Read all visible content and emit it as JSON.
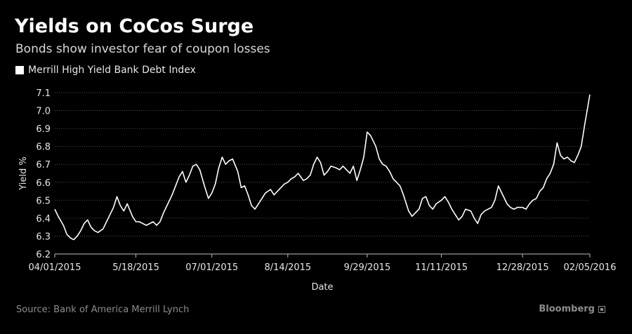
{
  "chart_data": {
    "type": "line",
    "title": "Yields on CoCos Surge",
    "subtitle": "Bonds show investor fear of coupon losses",
    "xlabel": "Date",
    "ylabel": "Yield %",
    "ylim": [
      6.2,
      7.1
    ],
    "yticks": [
      6.2,
      6.3,
      6.4,
      6.5,
      6.6,
      6.7,
      6.8,
      6.9,
      7.0,
      7.1
    ],
    "ytick_labels": [
      "6.2",
      "6.3",
      "6.4",
      "6.5",
      "6.6",
      "6.7",
      "6.8",
      "6.9",
      "7.0",
      "7.1"
    ],
    "xlim": [
      "2015-04-01",
      "2016-02-05"
    ],
    "xticks": [
      "2015-04-01",
      "2015-05-18",
      "2015-07-01",
      "2015-08-14",
      "2015-09-29",
      "2015-11-11",
      "2015-12-28",
      "2016-02-05"
    ],
    "xtick_labels": [
      "04/01/2015",
      "5/18/2015",
      "07/01/2015",
      "8/14/2015",
      "9/29/2015",
      "11/11/2015",
      "12/28/2015",
      "02/05/2016"
    ],
    "grid": true,
    "legend_position": "top-left",
    "series": [
      {
        "name": "Merrill High Yield Bank Debt Index",
        "color": "#ffffff",
        "x": [
          "2015-04-01",
          "2015-04-03",
          "2015-04-06",
          "2015-04-08",
          "2015-04-10",
          "2015-04-12",
          "2015-04-14",
          "2015-04-16",
          "2015-04-18",
          "2015-04-20",
          "2015-04-22",
          "2015-04-24",
          "2015-04-26",
          "2015-04-29",
          "2015-05-01",
          "2015-05-03",
          "2015-05-05",
          "2015-05-07",
          "2015-05-09",
          "2015-05-11",
          "2015-05-13",
          "2015-05-16",
          "2015-05-18",
          "2015-05-20",
          "2015-05-22",
          "2015-05-24",
          "2015-05-26",
          "2015-05-28",
          "2015-05-30",
          "2015-06-01",
          "2015-06-03",
          "2015-06-05",
          "2015-06-08",
          "2015-06-10",
          "2015-06-12",
          "2015-06-14",
          "2015-06-16",
          "2015-06-18",
          "2015-06-20",
          "2015-06-22",
          "2015-06-24",
          "2015-06-27",
          "2015-06-29",
          "2015-07-01",
          "2015-07-03",
          "2015-07-05",
          "2015-07-07",
          "2015-07-09",
          "2015-07-11",
          "2015-07-13",
          "2015-07-16",
          "2015-07-18",
          "2015-07-20",
          "2015-07-22",
          "2015-07-24",
          "2015-07-26",
          "2015-07-28",
          "2015-07-30",
          "2015-08-01",
          "2015-08-04",
          "2015-08-06",
          "2015-08-08",
          "2015-08-10",
          "2015-08-12",
          "2015-08-14",
          "2015-08-16",
          "2015-08-18",
          "2015-08-20",
          "2015-08-23",
          "2015-08-25",
          "2015-08-27",
          "2015-08-29",
          "2015-08-31",
          "2015-09-02",
          "2015-09-04",
          "2015-09-06",
          "2015-09-08",
          "2015-09-11",
          "2015-09-13",
          "2015-09-15",
          "2015-09-17",
          "2015-09-19",
          "2015-09-21",
          "2015-09-23",
          "2015-09-25",
          "2015-09-27",
          "2015-09-29",
          "2015-10-01",
          "2015-10-04",
          "2015-10-06",
          "2015-10-08",
          "2015-10-10",
          "2015-10-12",
          "2015-10-14",
          "2015-10-16",
          "2015-10-18",
          "2015-10-20",
          "2015-10-23",
          "2015-10-25",
          "2015-10-27",
          "2015-10-29",
          "2015-10-31",
          "2015-11-02",
          "2015-11-04",
          "2015-11-06",
          "2015-11-08",
          "2015-11-11",
          "2015-11-13",
          "2015-11-15",
          "2015-11-17",
          "2015-11-19",
          "2015-11-21",
          "2015-11-23",
          "2015-11-25",
          "2015-11-28",
          "2015-11-30",
          "2015-12-02",
          "2015-12-04",
          "2015-12-06",
          "2015-12-08",
          "2015-12-10",
          "2015-12-12",
          "2015-12-14",
          "2015-12-16",
          "2015-12-19",
          "2015-12-21",
          "2015-12-23",
          "2015-12-25",
          "2015-12-28",
          "2015-12-30",
          "2016-01-01",
          "2016-01-03",
          "2016-01-05",
          "2016-01-07",
          "2016-01-09",
          "2016-01-11",
          "2016-01-13",
          "2016-01-15",
          "2016-01-17",
          "2016-01-19",
          "2016-01-21",
          "2016-01-23",
          "2016-01-25",
          "2016-01-27",
          "2016-01-29",
          "2016-01-31",
          "2016-02-02",
          "2016-02-05"
        ],
        "values": [
          6.45,
          6.41,
          6.36,
          6.31,
          6.29,
          6.28,
          6.3,
          6.33,
          6.37,
          6.39,
          6.35,
          6.33,
          6.32,
          6.34,
          6.38,
          6.42,
          6.46,
          6.52,
          6.47,
          6.44,
          6.48,
          6.41,
          6.38,
          6.38,
          6.37,
          6.36,
          6.37,
          6.38,
          6.36,
          6.38,
          6.43,
          6.47,
          6.53,
          6.58,
          6.63,
          6.66,
          6.6,
          6.64,
          6.69,
          6.7,
          6.67,
          6.57,
          6.51,
          6.54,
          6.59,
          6.68,
          6.74,
          6.7,
          6.72,
          6.73,
          6.66,
          6.57,
          6.58,
          6.53,
          6.47,
          6.45,
          6.48,
          6.51,
          6.54,
          6.56,
          6.53,
          6.55,
          6.57,
          6.59,
          6.6,
          6.62,
          6.63,
          6.65,
          6.61,
          6.62,
          6.64,
          6.7,
          6.74,
          6.71,
          6.64,
          6.66,
          6.69,
          6.68,
          6.67,
          6.69,
          6.67,
          6.65,
          6.69,
          6.61,
          6.67,
          6.74,
          6.88,
          6.86,
          6.8,
          6.73,
          6.7,
          6.69,
          6.66,
          6.62,
          6.6,
          6.58,
          6.53,
          6.44,
          6.41,
          6.43,
          6.45,
          6.51,
          6.52,
          6.47,
          6.45,
          6.48,
          6.5,
          6.52,
          6.49,
          6.45,
          6.42,
          6.39,
          6.41,
          6.45,
          6.44,
          6.4,
          6.37,
          6.42,
          6.44,
          6.45,
          6.46,
          6.5,
          6.58,
          6.54,
          6.48,
          6.46,
          6.45,
          6.46,
          6.46,
          6.45,
          6.48,
          6.5,
          6.51,
          6.55,
          6.57,
          6.62,
          6.65,
          6.7,
          6.82,
          6.75,
          6.73,
          6.74,
          6.72,
          6.71,
          6.75,
          6.8,
          6.92,
          7.09
        ]
      }
    ]
  },
  "legend": {
    "items": [
      {
        "label": "Merrill High Yield Bank Debt Index",
        "color": "#ffffff"
      }
    ]
  },
  "footer": {
    "source": "Source: Bank of America Merrill Lynch",
    "brand": "Bloomberg"
  }
}
